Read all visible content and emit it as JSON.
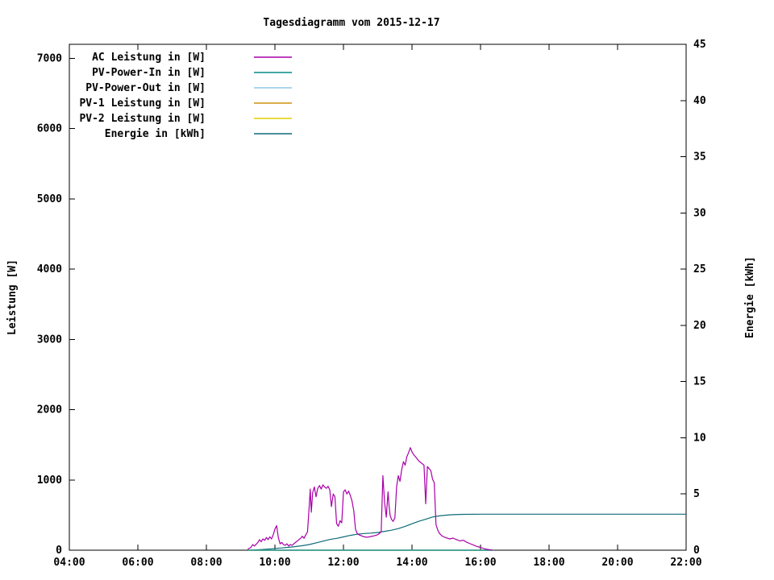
{
  "chart_data": {
    "type": "line",
    "title": "Tagesdiagramm vom 2015-12-17",
    "grid": false,
    "legend_position": "top-left-inside",
    "x_axis": {
      "min": 4,
      "max": 22,
      "ticks": [
        4,
        6,
        8,
        10,
        12,
        14,
        16,
        18,
        20,
        22
      ],
      "tick_labels": [
        "04:00",
        "06:00",
        "08:00",
        "10:00",
        "12:00",
        "14:00",
        "16:00",
        "18:00",
        "20:00",
        "22:00"
      ]
    },
    "y_left": {
      "label": "Leistung [W]",
      "min": 0,
      "max": 7200,
      "ticks": [
        0,
        1000,
        2000,
        3000,
        4000,
        5000,
        6000,
        7000
      ]
    },
    "y_right": {
      "label": "Energie [kWh]",
      "min": 0,
      "max": 45,
      "ticks": [
        0,
        5,
        10,
        15,
        20,
        25,
        30,
        35,
        40,
        45
      ]
    },
    "series": [
      {
        "name": "AC Leistung in [W]",
        "color": "#a800a8",
        "axis": "left",
        "points": [
          [
            9.2,
            10
          ],
          [
            9.3,
            40
          ],
          [
            9.35,
            80
          ],
          [
            9.4,
            60
          ],
          [
            9.5,
            110
          ],
          [
            9.55,
            150
          ],
          [
            9.6,
            120
          ],
          [
            9.65,
            160
          ],
          [
            9.7,
            140
          ],
          [
            9.75,
            180
          ],
          [
            9.8,
            150
          ],
          [
            9.85,
            190
          ],
          [
            9.9,
            160
          ],
          [
            9.95,
            220
          ],
          [
            10.0,
            300
          ],
          [
            10.05,
            350
          ],
          [
            10.1,
            180
          ],
          [
            10.15,
            90
          ],
          [
            10.2,
            110
          ],
          [
            10.25,
            80
          ],
          [
            10.3,
            70
          ],
          [
            10.35,
            90
          ],
          [
            10.4,
            60
          ],
          [
            10.45,
            80
          ],
          [
            10.5,
            70
          ],
          [
            10.55,
            90
          ],
          [
            10.6,
            110
          ],
          [
            10.65,
            130
          ],
          [
            10.7,
            150
          ],
          [
            10.75,
            170
          ],
          [
            10.8,
            200
          ],
          [
            10.85,
            170
          ],
          [
            10.9,
            220
          ],
          [
            10.95,
            260
          ],
          [
            11.0,
            620
          ],
          [
            11.03,
            870
          ],
          [
            11.06,
            540
          ],
          [
            11.1,
            820
          ],
          [
            11.15,
            900
          ],
          [
            11.2,
            760
          ],
          [
            11.25,
            880
          ],
          [
            11.3,
            920
          ],
          [
            11.35,
            870
          ],
          [
            11.4,
            930
          ],
          [
            11.45,
            900
          ],
          [
            11.5,
            880
          ],
          [
            11.55,
            910
          ],
          [
            11.6,
            860
          ],
          [
            11.65,
            620
          ],
          [
            11.7,
            800
          ],
          [
            11.75,
            760
          ],
          [
            11.8,
            380
          ],
          [
            11.85,
            340
          ],
          [
            11.9,
            420
          ],
          [
            11.95,
            390
          ],
          [
            12.0,
            830
          ],
          [
            12.05,
            860
          ],
          [
            12.1,
            800
          ],
          [
            12.15,
            840
          ],
          [
            12.2,
            780
          ],
          [
            12.25,
            700
          ],
          [
            12.3,
            560
          ],
          [
            12.35,
            300
          ],
          [
            12.4,
            240
          ],
          [
            12.45,
            220
          ],
          [
            12.5,
            210
          ],
          [
            12.6,
            190
          ],
          [
            12.7,
            185
          ],
          [
            12.8,
            195
          ],
          [
            12.9,
            205
          ],
          [
            13.0,
            220
          ],
          [
            13.05,
            240
          ],
          [
            13.1,
            260
          ],
          [
            13.15,
            1060
          ],
          [
            13.2,
            680
          ],
          [
            13.25,
            470
          ],
          [
            13.3,
            830
          ],
          [
            13.33,
            640
          ],
          [
            13.36,
            500
          ],
          [
            13.4,
            440
          ],
          [
            13.45,
            410
          ],
          [
            13.5,
            460
          ],
          [
            13.55,
            900
          ],
          [
            13.6,
            1060
          ],
          [
            13.65,
            980
          ],
          [
            13.7,
            1150
          ],
          [
            13.75,
            1260
          ],
          [
            13.8,
            1210
          ],
          [
            13.85,
            1330
          ],
          [
            13.9,
            1390
          ],
          [
            13.95,
            1460
          ],
          [
            14.0,
            1400
          ],
          [
            14.05,
            1360
          ],
          [
            14.1,
            1330
          ],
          [
            14.15,
            1300
          ],
          [
            14.2,
            1270
          ],
          [
            14.25,
            1250
          ],
          [
            14.3,
            1230
          ],
          [
            14.35,
            1210
          ],
          [
            14.4,
            660
          ],
          [
            14.45,
            1190
          ],
          [
            14.5,
            1160
          ],
          [
            14.55,
            1130
          ],
          [
            14.6,
            1010
          ],
          [
            14.65,
            960
          ],
          [
            14.7,
            360
          ],
          [
            14.75,
            290
          ],
          [
            14.8,
            240
          ],
          [
            14.85,
            215
          ],
          [
            14.9,
            195
          ],
          [
            15.0,
            175
          ],
          [
            15.1,
            160
          ],
          [
            15.2,
            172
          ],
          [
            15.3,
            150
          ],
          [
            15.4,
            132
          ],
          [
            15.5,
            142
          ],
          [
            15.6,
            112
          ],
          [
            15.7,
            92
          ],
          [
            15.8,
            72
          ],
          [
            15.9,
            52
          ],
          [
            16.0,
            40
          ],
          [
            16.1,
            22
          ],
          [
            16.2,
            12
          ],
          [
            16.3,
            5
          ],
          [
            16.35,
            0
          ]
        ]
      },
      {
        "name": "PV-Power-In in [W]",
        "color": "#008b8b",
        "axis": "left",
        "points": [
          [
            9.2,
            0
          ],
          [
            16.4,
            0
          ]
        ]
      },
      {
        "name": "PV-Power-Out in [W]",
        "color": "#8fc7e8",
        "axis": "left",
        "points": [
          [
            9.2,
            0
          ],
          [
            16.4,
            0
          ]
        ]
      },
      {
        "name": "PV-1 Leistung in [W]",
        "color": "#cf9010",
        "axis": "left",
        "points": [
          [
            9.2,
            0
          ],
          [
            16.4,
            0
          ]
        ]
      },
      {
        "name": "PV-2 Leistung in [W]",
        "color": "#ddd000",
        "axis": "left",
        "points": [
          [
            9.2,
            0
          ],
          [
            16.4,
            0
          ]
        ]
      },
      {
        "name": "Energie in [kWh]",
        "color": "#0f6b78",
        "axis": "right",
        "points": [
          [
            9.3,
            0
          ],
          [
            9.6,
            0.06
          ],
          [
            9.9,
            0.12
          ],
          [
            10.0,
            0.16
          ],
          [
            10.2,
            0.2
          ],
          [
            10.4,
            0.26
          ],
          [
            10.6,
            0.32
          ],
          [
            10.8,
            0.4
          ],
          [
            11.0,
            0.5
          ],
          [
            11.2,
            0.65
          ],
          [
            11.4,
            0.8
          ],
          [
            11.6,
            0.95
          ],
          [
            11.8,
            1.05
          ],
          [
            12.0,
            1.18
          ],
          [
            12.2,
            1.32
          ],
          [
            12.4,
            1.42
          ],
          [
            12.6,
            1.48
          ],
          [
            12.8,
            1.52
          ],
          [
            13.0,
            1.58
          ],
          [
            13.2,
            1.68
          ],
          [
            13.4,
            1.78
          ],
          [
            13.6,
            1.92
          ],
          [
            13.8,
            2.12
          ],
          [
            14.0,
            2.35
          ],
          [
            14.2,
            2.57
          ],
          [
            14.4,
            2.75
          ],
          [
            14.6,
            2.95
          ],
          [
            14.8,
            3.05
          ],
          [
            15.0,
            3.12
          ],
          [
            15.2,
            3.16
          ],
          [
            15.5,
            3.19
          ],
          [
            16.0,
            3.2
          ],
          [
            17.0,
            3.2
          ],
          [
            18.0,
            3.2
          ],
          [
            19.0,
            3.2
          ],
          [
            20.0,
            3.2
          ],
          [
            21.0,
            3.2
          ],
          [
            22.0,
            3.2
          ]
        ]
      }
    ]
  }
}
